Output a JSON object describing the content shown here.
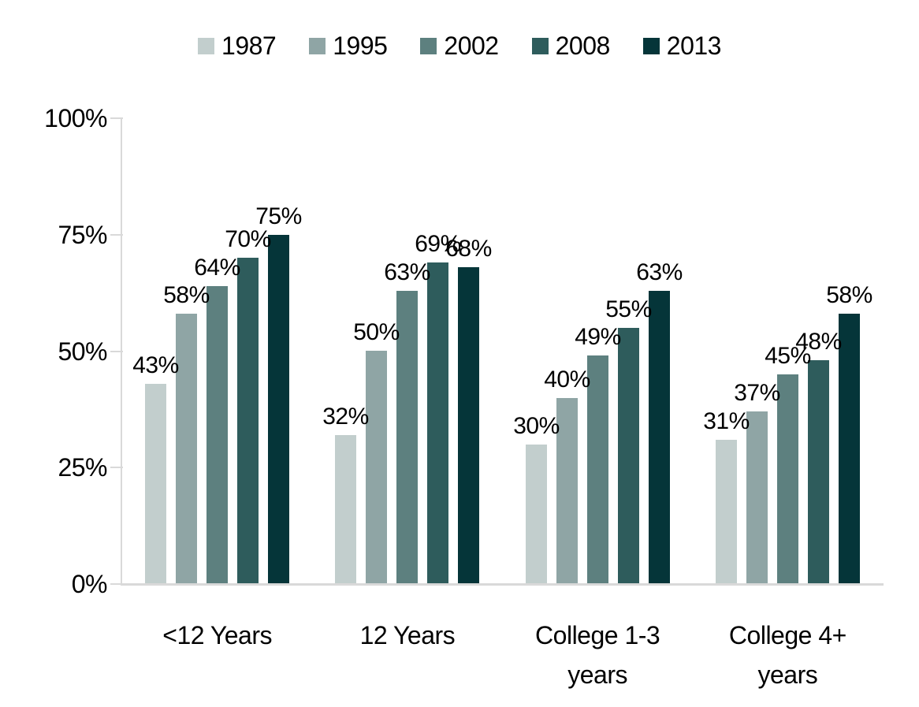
{
  "chart_data": {
    "type": "bar",
    "title": "",
    "xlabel": "",
    "ylabel": "",
    "categories": [
      "<12 Years",
      "12 Years",
      "College 1-3 years",
      "College 4+ years"
    ],
    "series": [
      {
        "name": "1987",
        "color": "#c2cecd",
        "values": [
          43,
          32,
          30,
          31
        ]
      },
      {
        "name": "1995",
        "color": "#8fa5a5",
        "values": [
          58,
          50,
          40,
          37
        ]
      },
      {
        "name": "2002",
        "color": "#5d807f",
        "values": [
          64,
          63,
          49,
          45
        ]
      },
      {
        "name": "2008",
        "color": "#2e5c5c",
        "values": [
          70,
          69,
          55,
          48
        ]
      },
      {
        "name": "2013",
        "color": "#053539",
        "values": [
          75,
          68,
          63,
          58
        ]
      }
    ],
    "data_labels": [
      [
        "43%",
        "32%",
        "30%",
        "31%"
      ],
      [
        "58%",
        "50%",
        "40%",
        "37%"
      ],
      [
        "64%",
        "63%",
        "49%",
        "45%"
      ],
      [
        "70%",
        "69%",
        "55%",
        "48%"
      ],
      [
        "75%",
        "68%",
        "63%",
        "58%"
      ]
    ],
    "y_axis": {
      "ylim": [
        0,
        100
      ],
      "tick_values": [
        0,
        25,
        50,
        75,
        100
      ],
      "tick_labels": [
        "0%",
        "25%",
        "50%",
        "75%",
        "100%"
      ]
    },
    "legend_position": "top",
    "grid": false,
    "colors": {
      "axis_line": "#d9d9d9",
      "text": "#000000",
      "background": "#ffffff"
    }
  }
}
